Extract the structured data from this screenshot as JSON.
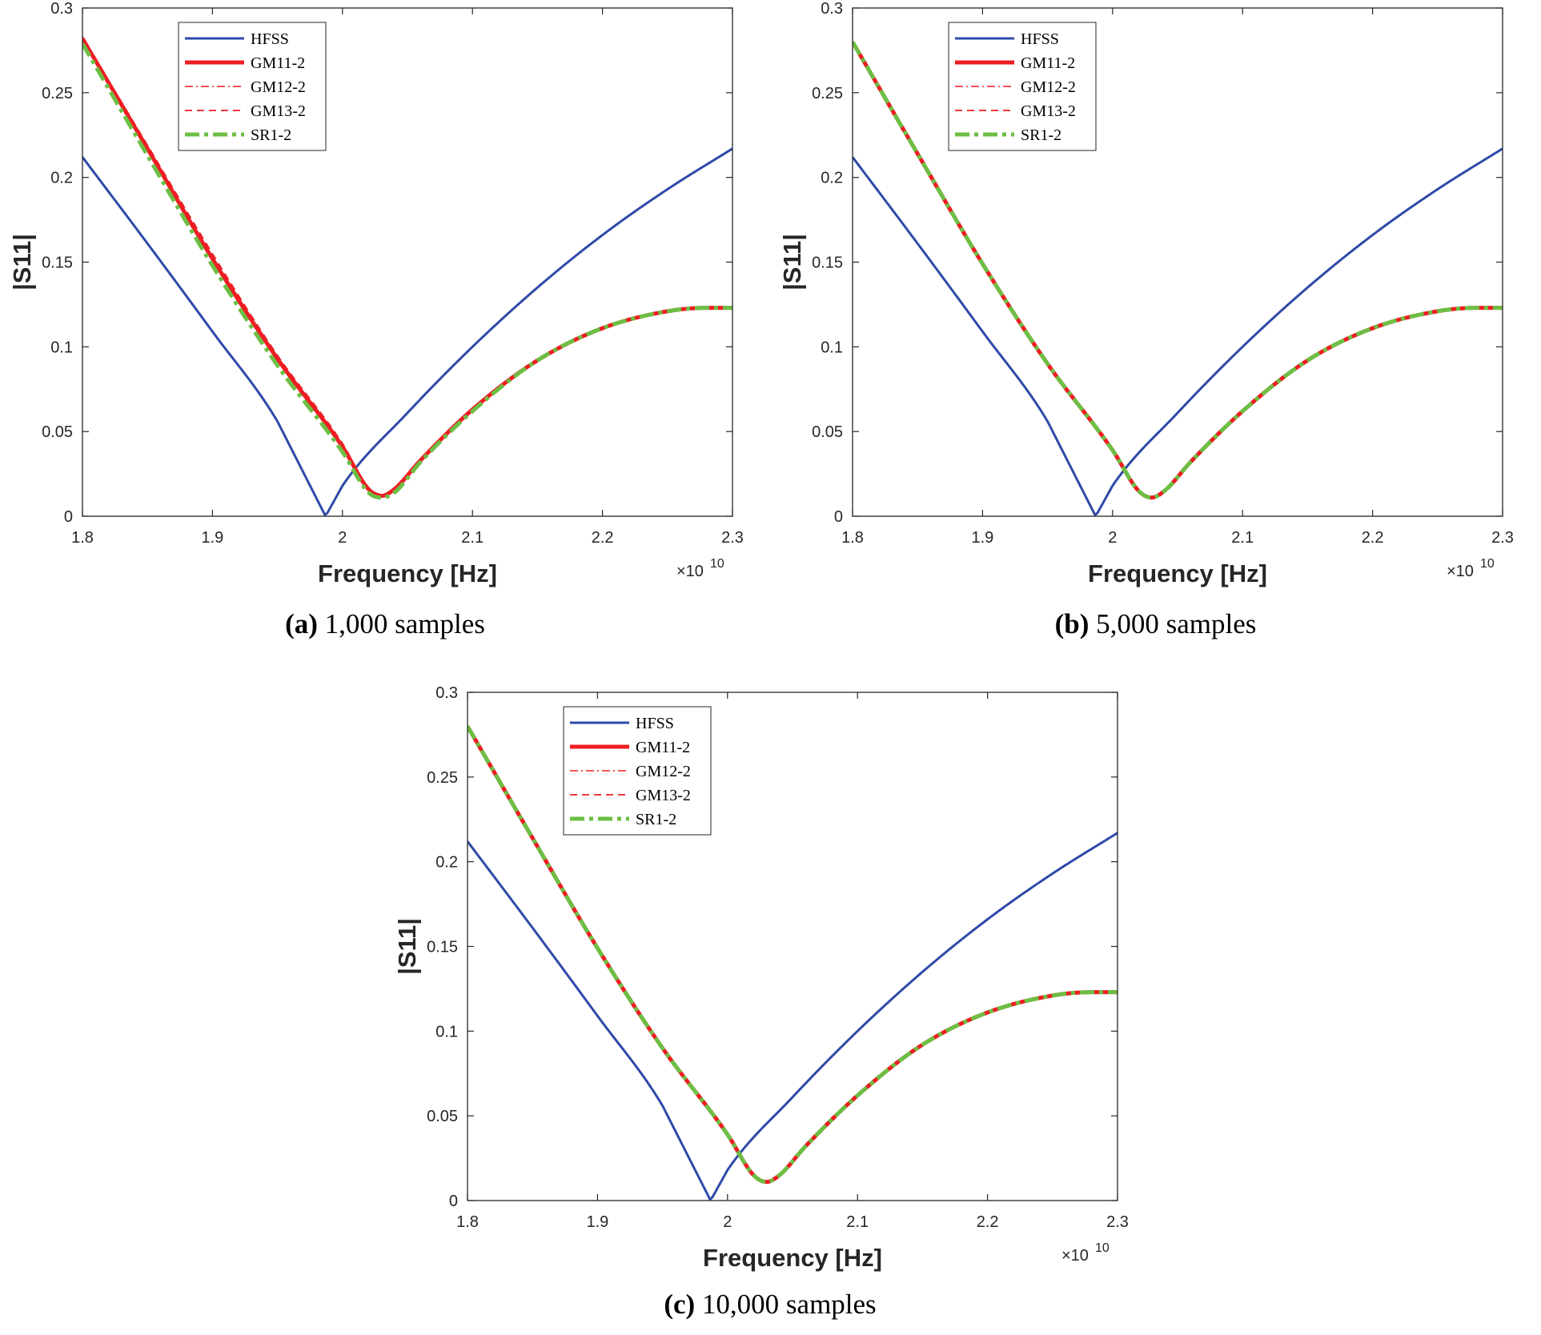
{
  "colors": {
    "hfss": "#2e4aa8",
    "gm": "#ee1d23",
    "sr": "#6cbf44",
    "axis": "#262626"
  },
  "panels": [
    {
      "id": "a",
      "caption_label": "(a)",
      "caption_text": "1,000 samples",
      "chart_data": {
        "type": "line",
        "xlabel": "Frequency [Hz]",
        "ylabel": "|S11|",
        "x_exponent": "×10",
        "x_exponent_power": "10",
        "xlim": [
          1.8,
          2.3
        ],
        "ylim": [
          0,
          0.3
        ],
        "x_ticks": [
          "1.8",
          "1.9",
          "2",
          "2.1",
          "2.2",
          "2.3"
        ],
        "y_ticks": [
          "0",
          "0.05",
          "0.1",
          "0.15",
          "0.2",
          "0.25",
          "0.3"
        ],
        "legend": [
          "HFSS",
          "GM11-2",
          "GM12-2",
          "GM13-2",
          "SR1-2"
        ],
        "legend_position": "top-left",
        "series": [
          {
            "name": "HFSS",
            "style": "solid-blue",
            "x": [
              1.8,
              1.85,
              1.9,
              1.95,
              1.987,
              2.0,
              2.05,
              2.1,
              2.15,
              2.2,
              2.25,
              2.3
            ],
            "y": [
              0.212,
              0.161,
              0.109,
              0.056,
              0.0,
              0.018,
              0.061,
              0.1,
              0.135,
              0.166,
              0.193,
              0.217
            ]
          },
          {
            "name": "GM11-2",
            "style": "solid-red",
            "x": [
              1.8,
              1.85,
              1.9,
              1.95,
              2.0,
              2.02,
              2.03,
              2.04,
              2.06,
              2.1,
              2.15,
              2.2,
              2.25,
              2.28,
              2.3
            ],
            "y": [
              0.282,
              0.217,
              0.152,
              0.093,
              0.041,
              0.016,
              0.012,
              0.016,
              0.033,
              0.063,
              0.092,
              0.111,
              0.121,
              0.123,
              0.123
            ]
          },
          {
            "name": "GM12-2",
            "style": "dashdot-red",
            "x": [
              1.8,
              1.85,
              1.9,
              1.95,
              2.0,
              2.02,
              2.03,
              2.04,
              2.06,
              2.1,
              2.15,
              2.2,
              2.25,
              2.28,
              2.3
            ],
            "y": [
              0.281,
              0.216,
              0.151,
              0.092,
              0.04,
              0.015,
              0.012,
              0.015,
              0.032,
              0.062,
              0.092,
              0.111,
              0.121,
              0.123,
              0.123
            ]
          },
          {
            "name": "GM13-2",
            "style": "dashed-red",
            "x": [
              1.8,
              1.85,
              1.9,
              1.95,
              2.0,
              2.02,
              2.03,
              2.04,
              2.06,
              2.1,
              2.15,
              2.2,
              2.25,
              2.28,
              2.3
            ],
            "y": [
              0.283,
              0.219,
              0.155,
              0.095,
              0.043,
              0.017,
              0.013,
              0.016,
              0.033,
              0.063,
              0.092,
              0.111,
              0.121,
              0.123,
              0.123
            ]
          },
          {
            "name": "SR1-2",
            "style": "dashdot-green",
            "x": [
              1.8,
              1.85,
              1.9,
              1.95,
              2.0,
              2.02,
              2.03,
              2.04,
              2.06,
              2.1,
              2.15,
              2.2,
              2.25,
              2.28,
              2.3
            ],
            "y": [
              0.279,
              0.213,
              0.148,
              0.089,
              0.038,
              0.014,
              0.011,
              0.014,
              0.032,
              0.062,
              0.092,
              0.111,
              0.121,
              0.123,
              0.123
            ]
          }
        ]
      }
    },
    {
      "id": "b",
      "caption_label": "(b)",
      "caption_text": "5,000 samples",
      "chart_data": {
        "type": "line",
        "xlabel": "Frequency [Hz]",
        "ylabel": "|S11|",
        "x_exponent": "×10",
        "x_exponent_power": "10",
        "xlim": [
          1.8,
          2.3
        ],
        "ylim": [
          0,
          0.3
        ],
        "x_ticks": [
          "1.8",
          "1.9",
          "2",
          "2.1",
          "2.2",
          "2.3"
        ],
        "y_ticks": [
          "0",
          "0.05",
          "0.1",
          "0.15",
          "0.2",
          "0.25",
          "0.3"
        ],
        "legend": [
          "HFSS",
          "GM11-2",
          "GM12-2",
          "GM13-2",
          "SR1-2"
        ],
        "legend_position": "top-left",
        "series": [
          {
            "name": "HFSS",
            "style": "solid-blue",
            "x": [
              1.8,
              1.85,
              1.9,
              1.95,
              1.987,
              2.0,
              2.05,
              2.1,
              2.15,
              2.2,
              2.25,
              2.3
            ],
            "y": [
              0.212,
              0.161,
              0.109,
              0.056,
              0.0,
              0.018,
              0.061,
              0.1,
              0.135,
              0.166,
              0.193,
              0.217
            ]
          },
          {
            "name": "GM11-2",
            "style": "solid-red",
            "x": [
              1.8,
              1.85,
              1.9,
              1.95,
              2.0,
              2.02,
              2.03,
              2.04,
              2.06,
              2.1,
              2.15,
              2.2,
              2.25,
              2.28,
              2.3
            ],
            "y": [
              0.28,
              0.214,
              0.149,
              0.09,
              0.039,
              0.015,
              0.011,
              0.015,
              0.032,
              0.062,
              0.092,
              0.111,
              0.121,
              0.123,
              0.123
            ]
          },
          {
            "name": "GM12-2",
            "style": "dashdot-red",
            "x": [
              1.8,
              1.85,
              1.9,
              1.95,
              2.0,
              2.02,
              2.03,
              2.04,
              2.06,
              2.1,
              2.15,
              2.2,
              2.25,
              2.28,
              2.3
            ],
            "y": [
              0.28,
              0.214,
              0.149,
              0.09,
              0.039,
              0.015,
              0.011,
              0.015,
              0.032,
              0.062,
              0.092,
              0.111,
              0.121,
              0.123,
              0.123
            ]
          },
          {
            "name": "GM13-2",
            "style": "dashed-red",
            "x": [
              1.8,
              1.85,
              1.9,
              1.95,
              2.0,
              2.02,
              2.03,
              2.04,
              2.06,
              2.1,
              2.15,
              2.2,
              2.25,
              2.28,
              2.3
            ],
            "y": [
              0.28,
              0.214,
              0.149,
              0.09,
              0.039,
              0.015,
              0.011,
              0.015,
              0.032,
              0.062,
              0.092,
              0.111,
              0.121,
              0.123,
              0.123
            ]
          },
          {
            "name": "SR1-2",
            "style": "dashdot-green",
            "x": [
              1.8,
              1.85,
              1.9,
              1.95,
              2.0,
              2.02,
              2.03,
              2.04,
              2.06,
              2.1,
              2.15,
              2.2,
              2.25,
              2.28,
              2.3
            ],
            "y": [
              0.28,
              0.214,
              0.149,
              0.09,
              0.039,
              0.015,
              0.011,
              0.015,
              0.032,
              0.062,
              0.092,
              0.111,
              0.121,
              0.123,
              0.123
            ]
          }
        ]
      }
    },
    {
      "id": "c",
      "caption_label": "(c)",
      "caption_text": "10,000 samples",
      "chart_data": {
        "type": "line",
        "xlabel": "Frequency [Hz]",
        "ylabel": "|S11|",
        "x_exponent": "×10",
        "x_exponent_power": "10",
        "xlim": [
          1.8,
          2.3
        ],
        "ylim": [
          0,
          0.3
        ],
        "x_ticks": [
          "1.8",
          "1.9",
          "2",
          "2.1",
          "2.2",
          "2.3"
        ],
        "y_ticks": [
          "0",
          "0.05",
          "0.1",
          "0.15",
          "0.2",
          "0.25",
          "0.3"
        ],
        "legend": [
          "HFSS",
          "GM11-2",
          "GM12-2",
          "GM13-2",
          "SR1-2"
        ],
        "legend_position": "top-left",
        "series": [
          {
            "name": "HFSS",
            "style": "solid-blue",
            "x": [
              1.8,
              1.85,
              1.9,
              1.95,
              1.987,
              2.0,
              2.05,
              2.1,
              2.15,
              2.2,
              2.25,
              2.3
            ],
            "y": [
              0.212,
              0.161,
              0.109,
              0.056,
              0.0,
              0.018,
              0.061,
              0.1,
              0.135,
              0.166,
              0.193,
              0.217
            ]
          },
          {
            "name": "GM11-2",
            "style": "solid-red",
            "x": [
              1.8,
              1.85,
              1.9,
              1.95,
              2.0,
              2.02,
              2.03,
              2.04,
              2.06,
              2.1,
              2.15,
              2.2,
              2.25,
              2.28,
              2.3
            ],
            "y": [
              0.28,
              0.214,
              0.149,
              0.09,
              0.039,
              0.015,
              0.011,
              0.015,
              0.032,
              0.062,
              0.092,
              0.111,
              0.121,
              0.123,
              0.123
            ]
          },
          {
            "name": "GM12-2",
            "style": "dashdot-red",
            "x": [
              1.8,
              1.85,
              1.9,
              1.95,
              2.0,
              2.02,
              2.03,
              2.04,
              2.06,
              2.1,
              2.15,
              2.2,
              2.25,
              2.28,
              2.3
            ],
            "y": [
              0.28,
              0.214,
              0.149,
              0.09,
              0.039,
              0.015,
              0.011,
              0.015,
              0.032,
              0.062,
              0.092,
              0.111,
              0.121,
              0.123,
              0.123
            ]
          },
          {
            "name": "GM13-2",
            "style": "dashed-red",
            "x": [
              1.8,
              1.85,
              1.9,
              1.95,
              2.0,
              2.02,
              2.03,
              2.04,
              2.06,
              2.1,
              2.15,
              2.2,
              2.25,
              2.28,
              2.3
            ],
            "y": [
              0.28,
              0.214,
              0.149,
              0.09,
              0.039,
              0.015,
              0.011,
              0.015,
              0.032,
              0.062,
              0.092,
              0.111,
              0.121,
              0.123,
              0.123
            ]
          },
          {
            "name": "SR1-2",
            "style": "dashdot-green",
            "x": [
              1.8,
              1.85,
              1.9,
              1.95,
              2.0,
              2.02,
              2.03,
              2.04,
              2.06,
              2.1,
              2.15,
              2.2,
              2.25,
              2.28,
              2.3
            ],
            "y": [
              0.28,
              0.214,
              0.149,
              0.09,
              0.039,
              0.015,
              0.011,
              0.015,
              0.032,
              0.062,
              0.092,
              0.111,
              0.121,
              0.123,
              0.123
            ]
          }
        ]
      }
    }
  ]
}
